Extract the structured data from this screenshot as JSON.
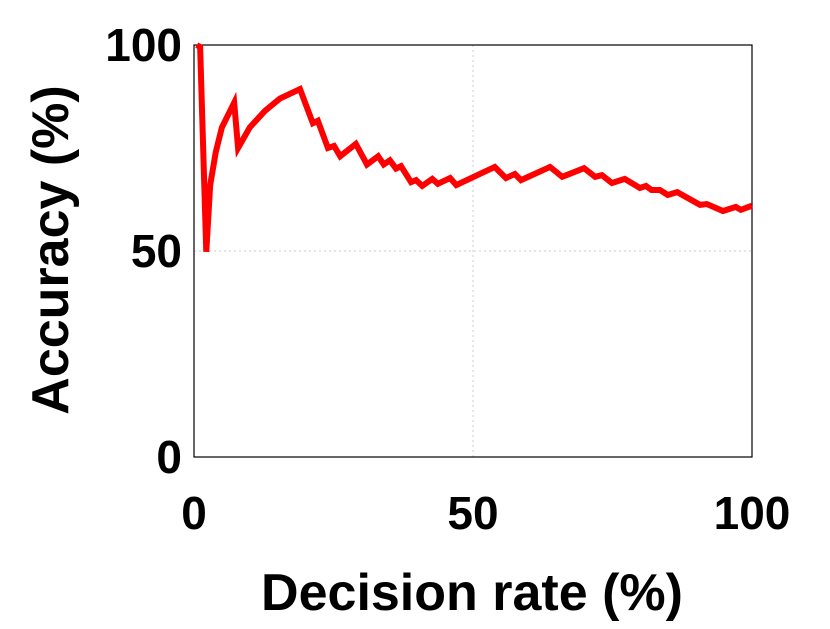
{
  "chart_data": {
    "type": "line",
    "xlabel": "Decision rate (%)",
    "ylabel": "Accuracy (%)",
    "x": [
      0.5,
      1.1,
      2.2,
      2.9,
      3.9,
      5,
      7.2,
      7.9,
      10,
      12.7,
      15.4,
      19,
      21.3,
      22.2,
      24,
      25.1,
      26.2,
      29,
      31,
      33,
      34,
      35.1,
      36.2,
      37.1,
      38.9,
      39.8,
      40.9,
      42.7,
      43.7,
      45.9,
      47,
      53.9,
      55.9,
      57.5,
      58.6,
      63.8,
      66,
      69.9,
      71.9,
      73.1,
      74.9,
      77.2,
      79.9,
      81,
      82,
      83.5,
      84.9,
      86.6,
      90.7,
      91.9,
      94.8,
      97.1,
      98,
      100
    ],
    "series": [
      {
        "name": "Accuracy",
        "color": "#ff0000",
        "values": [
          100,
          99.5,
          49.8,
          66,
          74,
          80,
          86,
          75,
          80,
          84,
          87,
          89.3,
          81,
          81.6,
          75,
          75.5,
          73,
          76,
          71,
          73,
          71,
          72,
          70,
          70.6,
          66.7,
          67.2,
          65.8,
          67.5,
          66.3,
          67.7,
          66,
          70.4,
          67.7,
          68.7,
          67.2,
          70.4,
          68,
          70.1,
          68,
          68.4,
          66.5,
          67.5,
          65.3,
          65.8,
          64.8,
          64.8,
          63.6,
          64.3,
          61.2,
          61.4,
          59.7,
          60.7,
          60,
          61
        ]
      }
    ],
    "xlim": [
      0,
      100
    ],
    "ylim": [
      0,
      100
    ],
    "xticks": [
      0,
      50,
      100
    ],
    "yticks": [
      0,
      50,
      100
    ],
    "grid": true
  }
}
